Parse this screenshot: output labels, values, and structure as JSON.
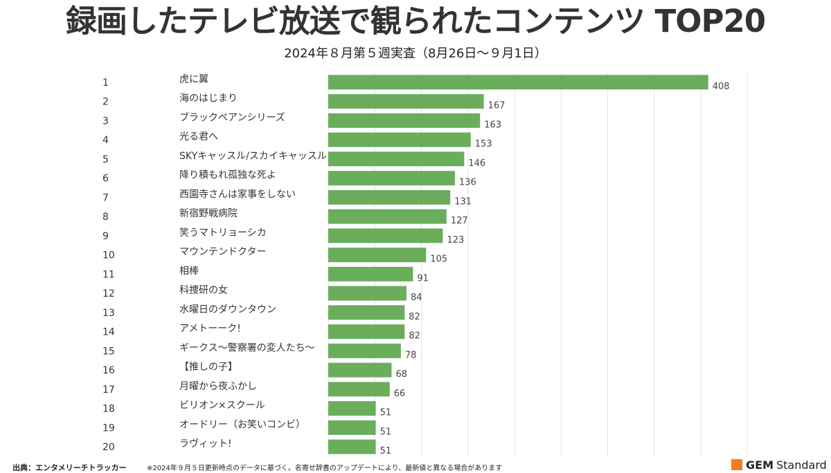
{
  "title": "録画したテレビ放送で観られたコンテンツ TOP20",
  "subtitle": "2024年８月第５週実査（8月26日～９月1日）",
  "footer": {
    "source": "出典：エンタメリーチトラッカー",
    "note": "※2024年９月５日更新時点のデータに基づく。名寄せ辞書のアップデートにより、最新値と異なる場合があります"
  },
  "brand": {
    "gem": "GEM",
    "standard": "Standard",
    "accent_color": "#f07e26"
  },
  "chart_data": {
    "type": "bar",
    "orientation": "horizontal",
    "title": "",
    "xlabel": "",
    "ylabel": "",
    "xlim": [
      0,
      450
    ],
    "grid": true,
    "bar_color": "#6aad5b",
    "ranks": [
      "1",
      "2",
      "3",
      "4",
      "5",
      "6",
      "7",
      "8",
      "9",
      "10",
      "11",
      "12",
      "13",
      "14",
      "15",
      "16",
      "17",
      "18",
      "19",
      "20"
    ],
    "categories": [
      "虎に翼",
      "海のはじまり",
      "ブラックペアンシリーズ",
      "光る君へ",
      "SKYキャッスル/スカイキャッスル",
      "降り積もれ孤独な死よ",
      "西園寺さんは家事をしない",
      "新宿野戦病院",
      "笑うマトリョーシカ",
      "マウンテンドクター",
      "相棒",
      "科捜研の女",
      "水曜日のダウンタウン",
      "アメトーーク!",
      "ギークス～警察署の変人たち～",
      "【推しの子】",
      "月曜から夜ふかし",
      "ビリオン×スクール",
      "オードリー（お笑いコンビ）",
      "ラヴィット!"
    ],
    "values": [
      408,
      167,
      163,
      153,
      146,
      136,
      131,
      127,
      123,
      105,
      91,
      84,
      82,
      82,
      78,
      68,
      66,
      51,
      51,
      51
    ]
  }
}
